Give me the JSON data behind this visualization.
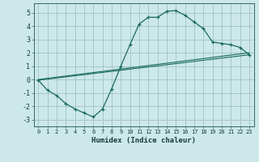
{
  "xlabel": "Humidex (Indice chaleur)",
  "bg_color": "#cce8e8",
  "grid_color": "#99bbbb",
  "line_color": "#1a6b5a",
  "xlim": [
    -0.5,
    23.5
  ],
  "ylim": [
    -3.5,
    5.7
  ],
  "xticks": [
    0,
    1,
    2,
    3,
    4,
    5,
    6,
    7,
    8,
    9,
    10,
    11,
    12,
    13,
    14,
    15,
    16,
    17,
    18,
    19,
    20,
    21,
    22,
    23
  ],
  "yticks": [
    -3,
    -2,
    -1,
    0,
    1,
    2,
    3,
    4,
    5
  ],
  "curve1_x": [
    0,
    1,
    2,
    3,
    4,
    5,
    6,
    7,
    8,
    9,
    10,
    11,
    12,
    13,
    14,
    15,
    16,
    17,
    18,
    19,
    20,
    21,
    22,
    23
  ],
  "curve1_y": [
    -0.05,
    -0.8,
    -1.2,
    -1.8,
    -2.2,
    -2.5,
    -2.8,
    -2.2,
    -0.7,
    1.0,
    2.6,
    4.15,
    4.65,
    4.65,
    5.1,
    5.15,
    4.8,
    4.3,
    3.8,
    2.8,
    2.7,
    2.6,
    2.4,
    1.85
  ],
  "line2_x": [
    0,
    23
  ],
  "line2_y": [
    -0.05,
    1.85
  ],
  "line3_x": [
    0,
    23
  ],
  "line3_y": [
    0.0,
    2.0
  ]
}
